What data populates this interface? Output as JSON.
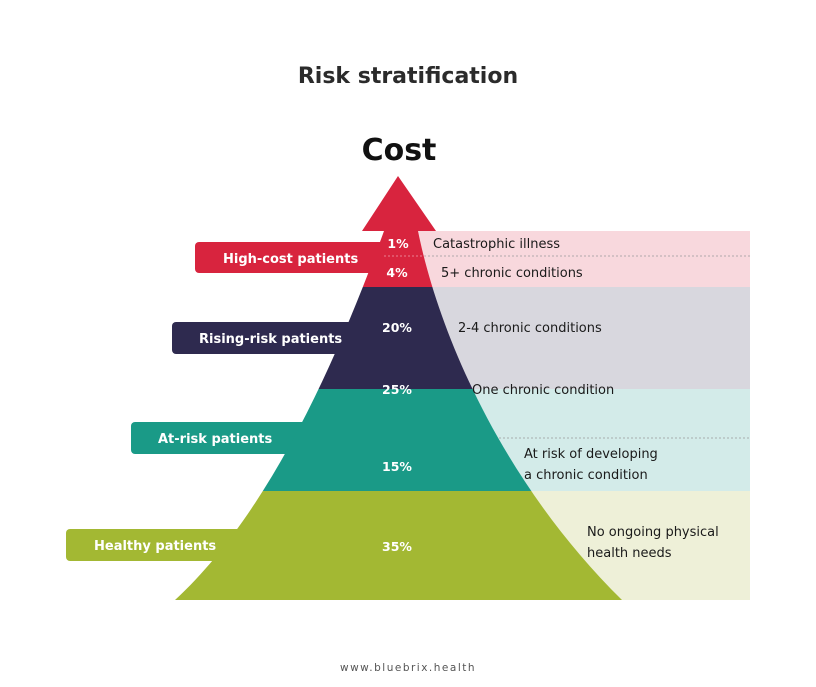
{
  "title": "Risk stratification",
  "axis_label": "Cost",
  "footer": "www.bluebrix.health",
  "colors": {
    "high_cost": "#d8243e",
    "rising_risk": "#2e2a4f",
    "at_risk": "#1a9a87",
    "healthy": "#a3b833",
    "high_cost_bg": "#f8d8dd",
    "rising_risk_bg": "#d8d7de",
    "at_risk_bg": "#d3ebe9",
    "healthy_bg": "#eef0d8"
  },
  "tiers": [
    {
      "label": "High-cost patients",
      "segments": [
        {
          "percent": "1%",
          "description": "Catastrophic illness"
        },
        {
          "percent": "4%",
          "description": "5+ chronic conditions"
        }
      ]
    },
    {
      "label": "Rising-risk patients",
      "segments": [
        {
          "percent": "20%",
          "description": "2-4 chronic conditions"
        },
        {
          "percent": "25%",
          "description": "One chronic condition"
        }
      ]
    },
    {
      "label": "At-risk patients",
      "segments": [
        {
          "percent": "15%",
          "description_line1": "At risk of developing",
          "description_line2": "a chronic condition"
        }
      ]
    },
    {
      "label": "Healthy patients",
      "segments": [
        {
          "percent": "35%",
          "description_line1": "No ongoing physical",
          "description_line2": "health needs"
        }
      ]
    }
  ]
}
